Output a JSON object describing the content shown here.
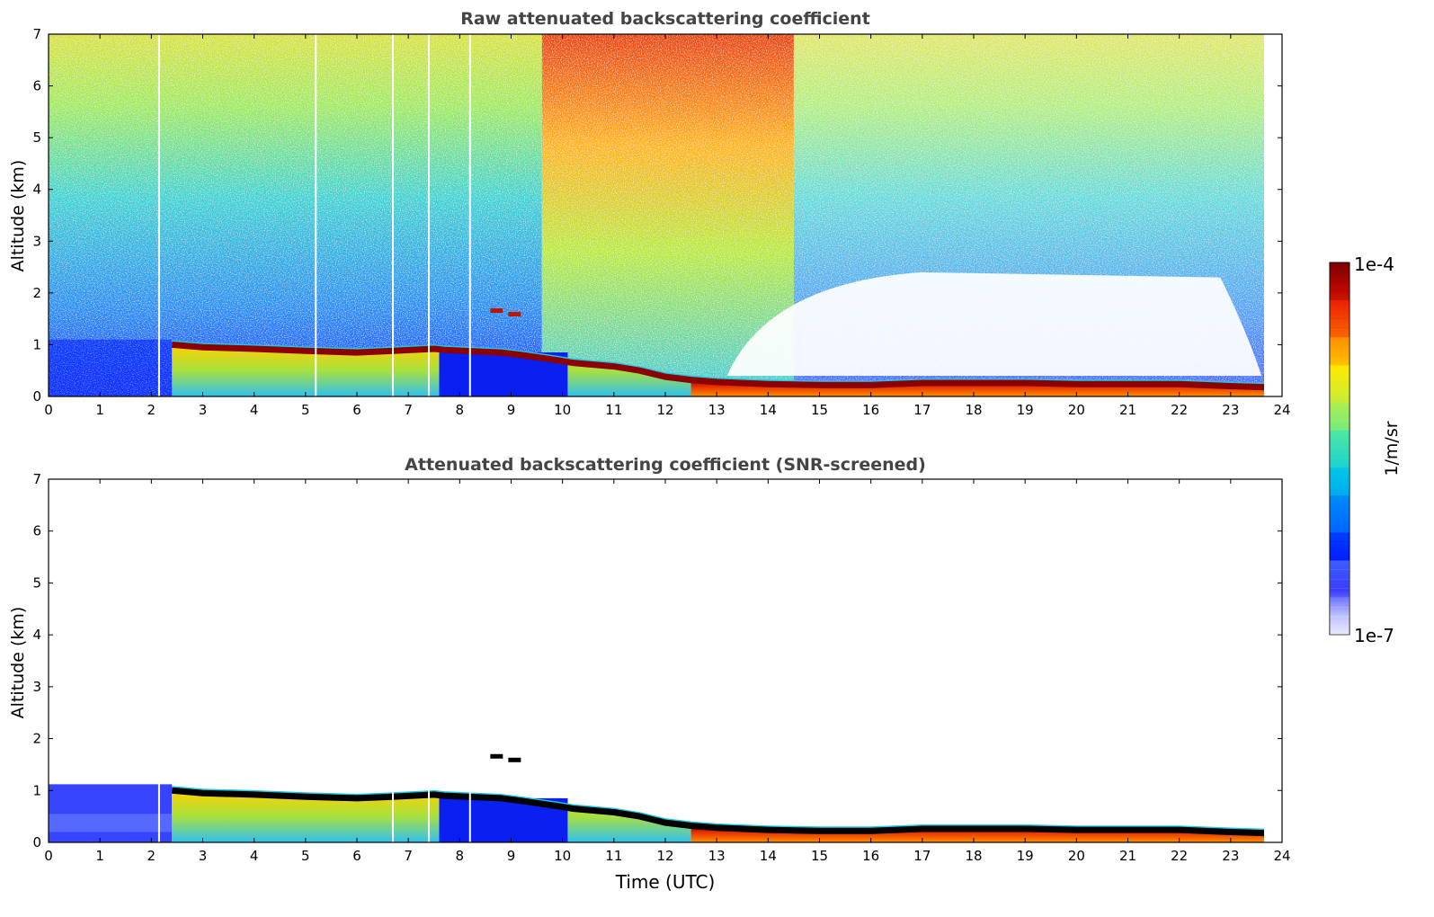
{
  "chart_data": [
    {
      "type": "heatmap",
      "title": "Raw attenuated backscattering coefficient",
      "xlabel": "",
      "ylabel": "Altitude (km)",
      "xlim": [
        0,
        24
      ],
      "ylim": [
        0,
        7
      ],
      "xticks": [
        "0",
        "1",
        "2",
        "3",
        "4",
        "5",
        "6",
        "7",
        "8",
        "9",
        "10",
        "11",
        "12",
        "13",
        "14",
        "15",
        "16",
        "17",
        "18",
        "19",
        "20",
        "21",
        "22",
        "23",
        "24"
      ],
      "yticks": [
        "0",
        "1",
        "2",
        "3",
        "4",
        "5",
        "6",
        "7"
      ],
      "data_end_hour": 23.65,
      "cloud_base": {
        "x": [
          2.4,
          3,
          4,
          5,
          6,
          6.7,
          7.5,
          7.7,
          8.8,
          9.2,
          9.9,
          10.2,
          11,
          11.5,
          12,
          12.5,
          13,
          14,
          15,
          16,
          17,
          18,
          19,
          20,
          21,
          22,
          23,
          23.65
        ],
        "y": [
          1.0,
          0.95,
          0.92,
          0.88,
          0.85,
          0.88,
          0.92,
          0.9,
          0.85,
          0.8,
          0.7,
          0.65,
          0.58,
          0.5,
          0.38,
          0.32,
          0.28,
          0.24,
          0.22,
          0.22,
          0.26,
          0.26,
          0.26,
          0.24,
          0.24,
          0.24,
          0.2,
          0.18
        ]
      },
      "elevated_layers": [
        {
          "x": 8.7,
          "y": 1.65
        },
        {
          "x": 9.05,
          "y": 1.58
        }
      ],
      "data_gaps": [
        2.15,
        5.2,
        6.7,
        7.4,
        8.2
      ]
    },
    {
      "type": "heatmap",
      "title": "Attenuated backscattering coefficient (SNR-screened)",
      "xlabel": "Time (UTC)",
      "ylabel": "Altitude (km)",
      "xlim": [
        0,
        24
      ],
      "ylim": [
        0,
        7
      ],
      "xticks": [
        "0",
        "1",
        "2",
        "3",
        "4",
        "5",
        "6",
        "7",
        "8",
        "9",
        "10",
        "11",
        "12",
        "13",
        "14",
        "15",
        "16",
        "17",
        "18",
        "19",
        "20",
        "21",
        "22",
        "23",
        "24"
      ],
      "yticks": [
        "0",
        "1",
        "2",
        "3",
        "4",
        "5",
        "6",
        "7"
      ],
      "data_end_hour": 23.65,
      "cloud_base": {
        "x": [
          2.4,
          3,
          4,
          5,
          6,
          6.7,
          7.5,
          7.7,
          8.8,
          9.2,
          9.9,
          10.2,
          11,
          11.5,
          12,
          12.5,
          13,
          14,
          15,
          16,
          17,
          18,
          19,
          20,
          21,
          22,
          23,
          23.65
        ],
        "y": [
          1.0,
          0.95,
          0.92,
          0.88,
          0.85,
          0.88,
          0.92,
          0.9,
          0.85,
          0.8,
          0.7,
          0.65,
          0.58,
          0.5,
          0.38,
          0.32,
          0.28,
          0.24,
          0.22,
          0.22,
          0.26,
          0.26,
          0.26,
          0.24,
          0.24,
          0.24,
          0.2,
          0.18
        ]
      },
      "elevated_layers": [
        {
          "x": 8.7,
          "y": 1.65
        },
        {
          "x": 9.05,
          "y": 1.58
        }
      ],
      "data_gaps": [
        2.15,
        6.7,
        7.4,
        8.2
      ]
    }
  ],
  "colorbar": {
    "label": "1/m/sr",
    "max_label": "1e-4",
    "min_label": "1e-7",
    "scale": "log",
    "colors": [
      "#e8e8ff",
      "#aab0ff",
      "#0000ff",
      "#0070ff",
      "#00c8e8",
      "#50e8a0",
      "#c0f040",
      "#ffe800",
      "#ff8000",
      "#e81000",
      "#7a0000"
    ]
  },
  "colors": {
    "cloud": "#8b0000",
    "screened_cloud": "#000000",
    "text": "#444444"
  }
}
